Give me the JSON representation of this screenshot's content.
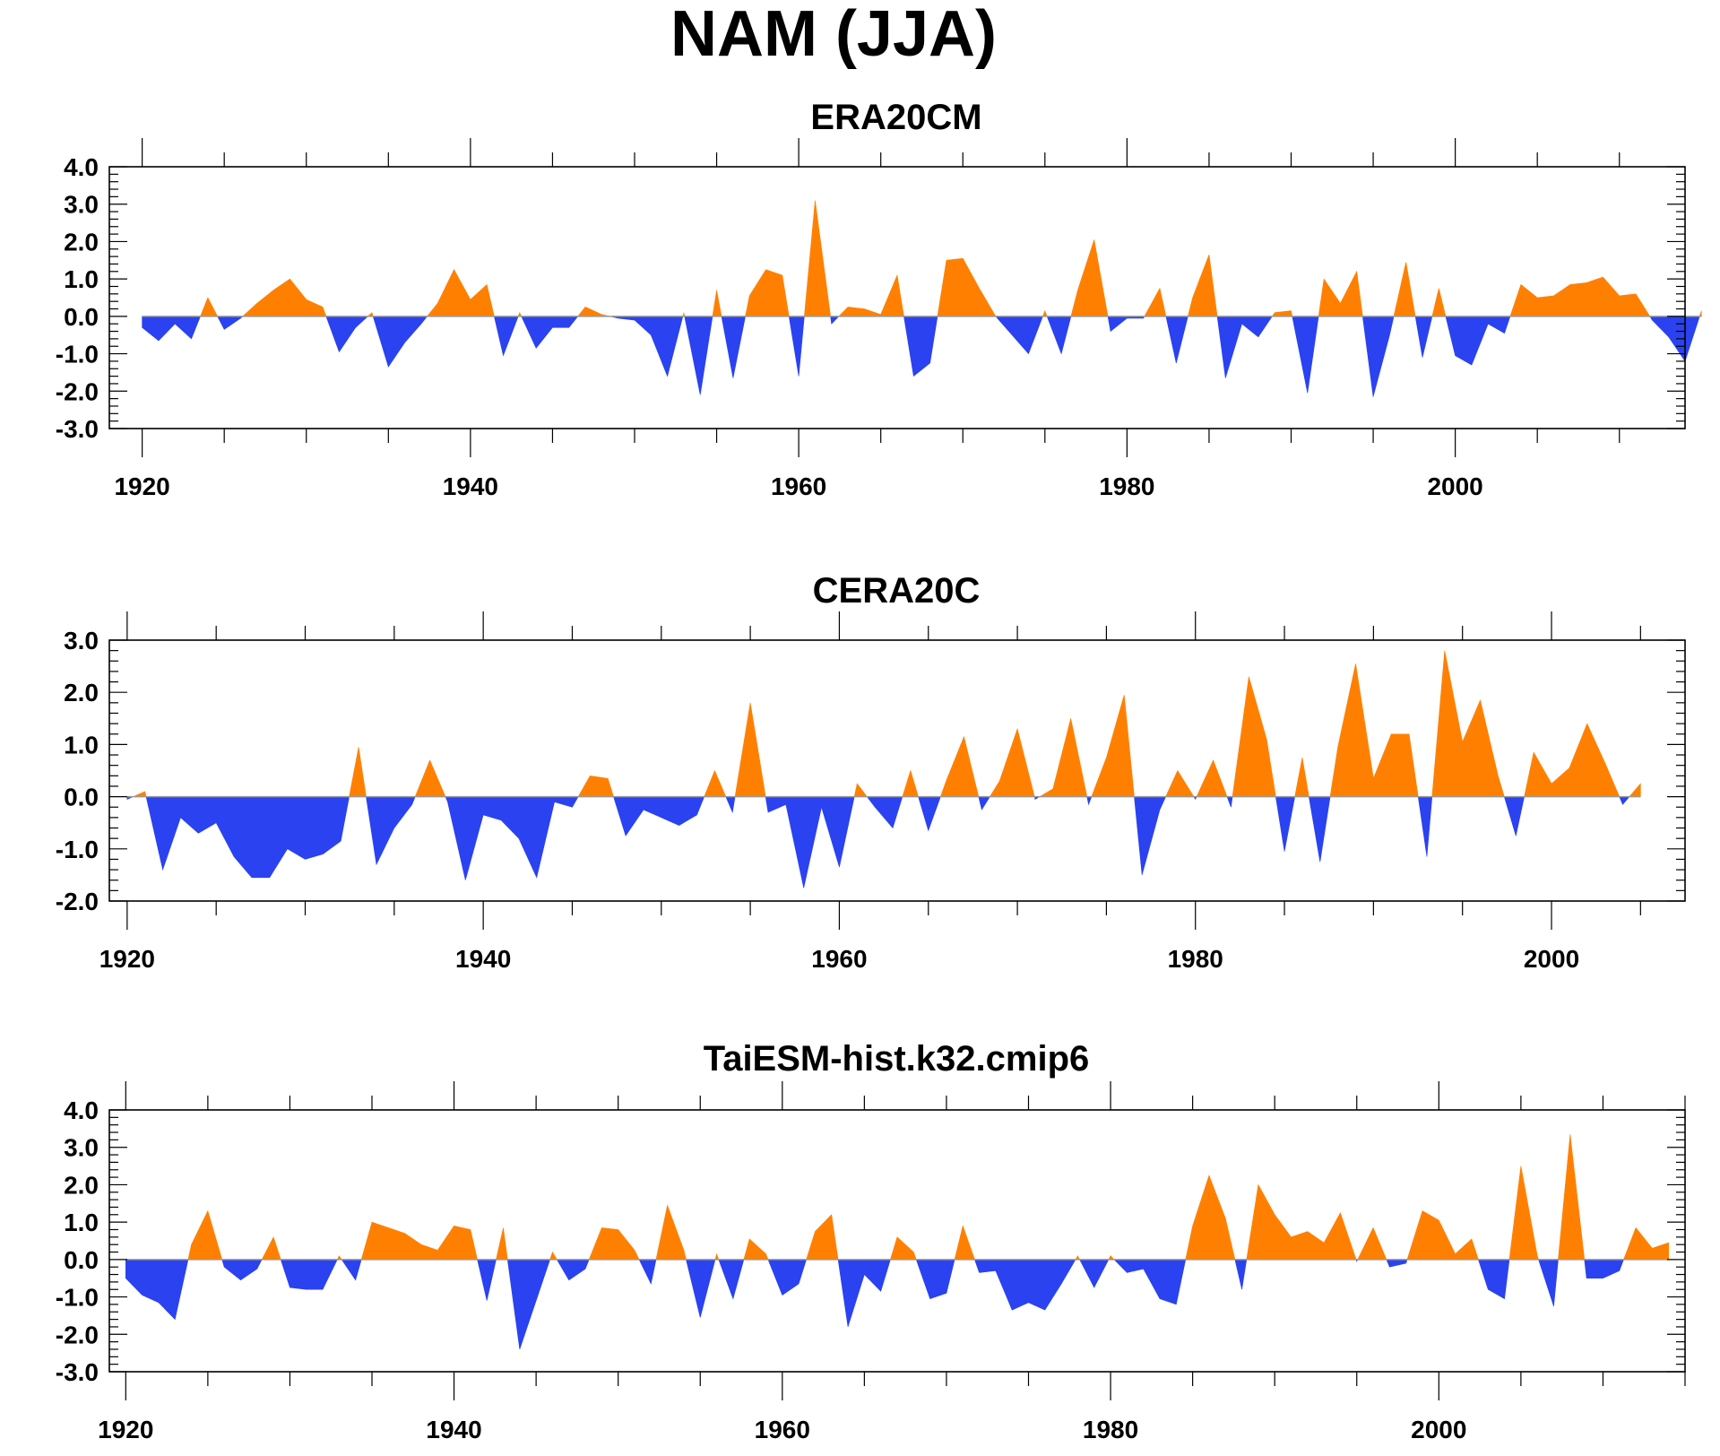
{
  "figure": {
    "title": "NAM (JJA)"
  },
  "colors": {
    "positive": "#ff8000",
    "negative": "#2a42f0",
    "frame": "#000000",
    "zero_line": "#999999"
  },
  "chart_data": [
    {
      "type": "area",
      "title": "ERA20CM",
      "xlabel": "",
      "ylabel": "",
      "xlim": [
        1920,
        2010
      ],
      "ylim": [
        -3.0,
        4.0
      ],
      "x_ticks": [
        1920,
        1940,
        1960,
        1980,
        2000
      ],
      "x_tick_labels": [
        "1920",
        "1940",
        "1960",
        "1980",
        "2000"
      ],
      "y_ticks": [
        4.0,
        3.0,
        2.0,
        1.0,
        0.0,
        -1.0,
        -2.0,
        -3.0
      ],
      "y_tick_labels": [
        "4.0",
        "3.0",
        "2.0",
        "1.0",
        "0.0",
        "-1.0",
        "-2.0",
        "-3.0"
      ],
      "x_start": 1920,
      "values": [
        -0.3,
        -0.65,
        -0.2,
        -0.6,
        0.5,
        -0.35,
        -0.05,
        0.35,
        0.7,
        1.0,
        0.45,
        0.25,
        -0.95,
        -0.3,
        0.1,
        -1.35,
        -0.7,
        -0.2,
        0.35,
        1.25,
        0.45,
        0.85,
        -1.05,
        0.1,
        -0.85,
        -0.3,
        -0.3,
        0.25,
        0.05,
        -0.05,
        -0.1,
        -0.5,
        -1.6,
        0.1,
        -2.1,
        0.7,
        -1.65,
        0.55,
        1.25,
        1.1,
        -1.6,
        3.1,
        -0.2,
        0.25,
        0.2,
        0.05,
        1.1,
        -1.6,
        -1.25,
        1.5,
        1.55,
        0.75,
        0.0,
        -0.5,
        -1.0,
        0.15,
        -1.0,
        0.7,
        2.05,
        -0.4,
        -0.05,
        -0.05,
        0.75,
        -1.25,
        0.5,
        1.65,
        -1.65,
        -0.2,
        -0.55,
        0.1,
        0.15,
        -2.05,
        1.0,
        0.35,
        1.2,
        -2.15,
        -0.5,
        1.45,
        -1.1,
        0.75,
        -1.05,
        -1.3,
        -0.2,
        -0.45,
        0.85,
        0.5,
        0.55,
        0.85,
        0.9,
        1.05,
        0.55,
        0.6,
        -0.1,
        -0.55,
        -1.2,
        0.15
      ]
    },
    {
      "type": "area",
      "title": "CERA20C",
      "xlabel": "",
      "ylabel": "",
      "xlim": [
        1920,
        2005
      ],
      "ylim": [
        -2.0,
        3.0
      ],
      "x_ticks": [
        1920,
        1940,
        1960,
        1980,
        2000
      ],
      "x_tick_labels": [
        "1920",
        "1940",
        "1960",
        "1980",
        "2000"
      ],
      "y_ticks": [
        3.0,
        2.0,
        1.0,
        0.0,
        -1.0,
        -2.0
      ],
      "y_tick_labels": [
        "3.0",
        "2.0",
        "1.0",
        "0.0",
        "-1.0",
        "-2.0"
      ],
      "x_start": 1920,
      "values": [
        -0.05,
        0.1,
        -1.4,
        -0.4,
        -0.7,
        -0.5,
        -1.15,
        -1.55,
        -1.55,
        -1.0,
        -1.2,
        -1.1,
        -0.85,
        0.95,
        -1.3,
        -0.6,
        -0.15,
        0.7,
        -0.1,
        -1.6,
        -0.35,
        -0.45,
        -0.8,
        -1.55,
        -0.1,
        -0.2,
        0.4,
        0.35,
        -0.75,
        -0.25,
        -0.4,
        -0.55,
        -0.35,
        0.5,
        -0.3,
        1.8,
        -0.3,
        -0.15,
        -1.75,
        -0.2,
        -1.35,
        0.25,
        -0.2,
        -0.6,
        0.5,
        -0.65,
        0.3,
        1.15,
        -0.25,
        0.3,
        1.3,
        -0.05,
        0.15,
        1.5,
        -0.15,
        0.75,
        1.95,
        -1.5,
        -0.25,
        0.5,
        -0.05,
        0.7,
        -0.2,
        2.3,
        1.1,
        -1.05,
        0.75,
        -1.25,
        0.95,
        2.55,
        0.35,
        1.2,
        1.2,
        -1.15,
        2.8,
        1.05,
        1.85,
        0.4,
        -0.75,
        0.85,
        0.25,
        0.55,
        1.4,
        0.65,
        -0.15,
        0.25
      ]
    },
    {
      "type": "area",
      "title": "TaiESM-hist.k32.cmip6",
      "xlabel": "",
      "ylabel": "",
      "xlim": [
        1920,
        2014
      ],
      "ylim": [
        -3.0,
        4.0
      ],
      "x_ticks": [
        1920,
        1940,
        1960,
        1980,
        2000
      ],
      "x_tick_labels": [
        "1920",
        "1940",
        "1960",
        "1980",
        "2000"
      ],
      "y_ticks": [
        4.0,
        3.0,
        2.0,
        1.0,
        0.0,
        -1.0,
        -2.0,
        -3.0
      ],
      "y_tick_labels": [
        "4.0",
        "3.0",
        "2.0",
        "1.0",
        "0.0",
        "-1.0",
        "-2.0",
        "-3.0"
      ],
      "x_start": 1920,
      "values": [
        -0.5,
        -0.95,
        -1.15,
        -1.6,
        0.4,
        1.3,
        -0.2,
        -0.55,
        -0.25,
        0.6,
        -0.75,
        -0.8,
        -0.8,
        0.1,
        -0.55,
        1.0,
        0.85,
        0.7,
        0.4,
        0.25,
        0.9,
        0.8,
        -1.1,
        0.85,
        -2.4,
        -1.1,
        0.2,
        -0.55,
        -0.25,
        0.85,
        0.8,
        0.25,
        -0.65,
        1.45,
        0.25,
        -1.55,
        0.15,
        -1.05,
        0.55,
        0.15,
        -0.95,
        -0.65,
        0.75,
        1.2,
        -1.8,
        -0.4,
        -0.85,
        0.6,
        0.2,
        -1.05,
        -0.9,
        0.9,
        -0.35,
        -0.3,
        -1.35,
        -1.15,
        -1.35,
        -0.65,
        0.1,
        -0.75,
        0.1,
        -0.35,
        -0.25,
        -1.05,
        -1.2,
        0.9,
        2.25,
        1.1,
        -0.8,
        2.0,
        1.2,
        0.6,
        0.75,
        0.45,
        1.25,
        -0.05,
        0.85,
        -0.2,
        -0.1,
        1.3,
        1.05,
        0.15,
        0.55,
        -0.8,
        -1.05,
        2.5,
        0.1,
        -1.25,
        3.35,
        -0.5,
        -0.5,
        -0.3,
        0.85,
        0.3,
        0.45
      ]
    }
  ]
}
